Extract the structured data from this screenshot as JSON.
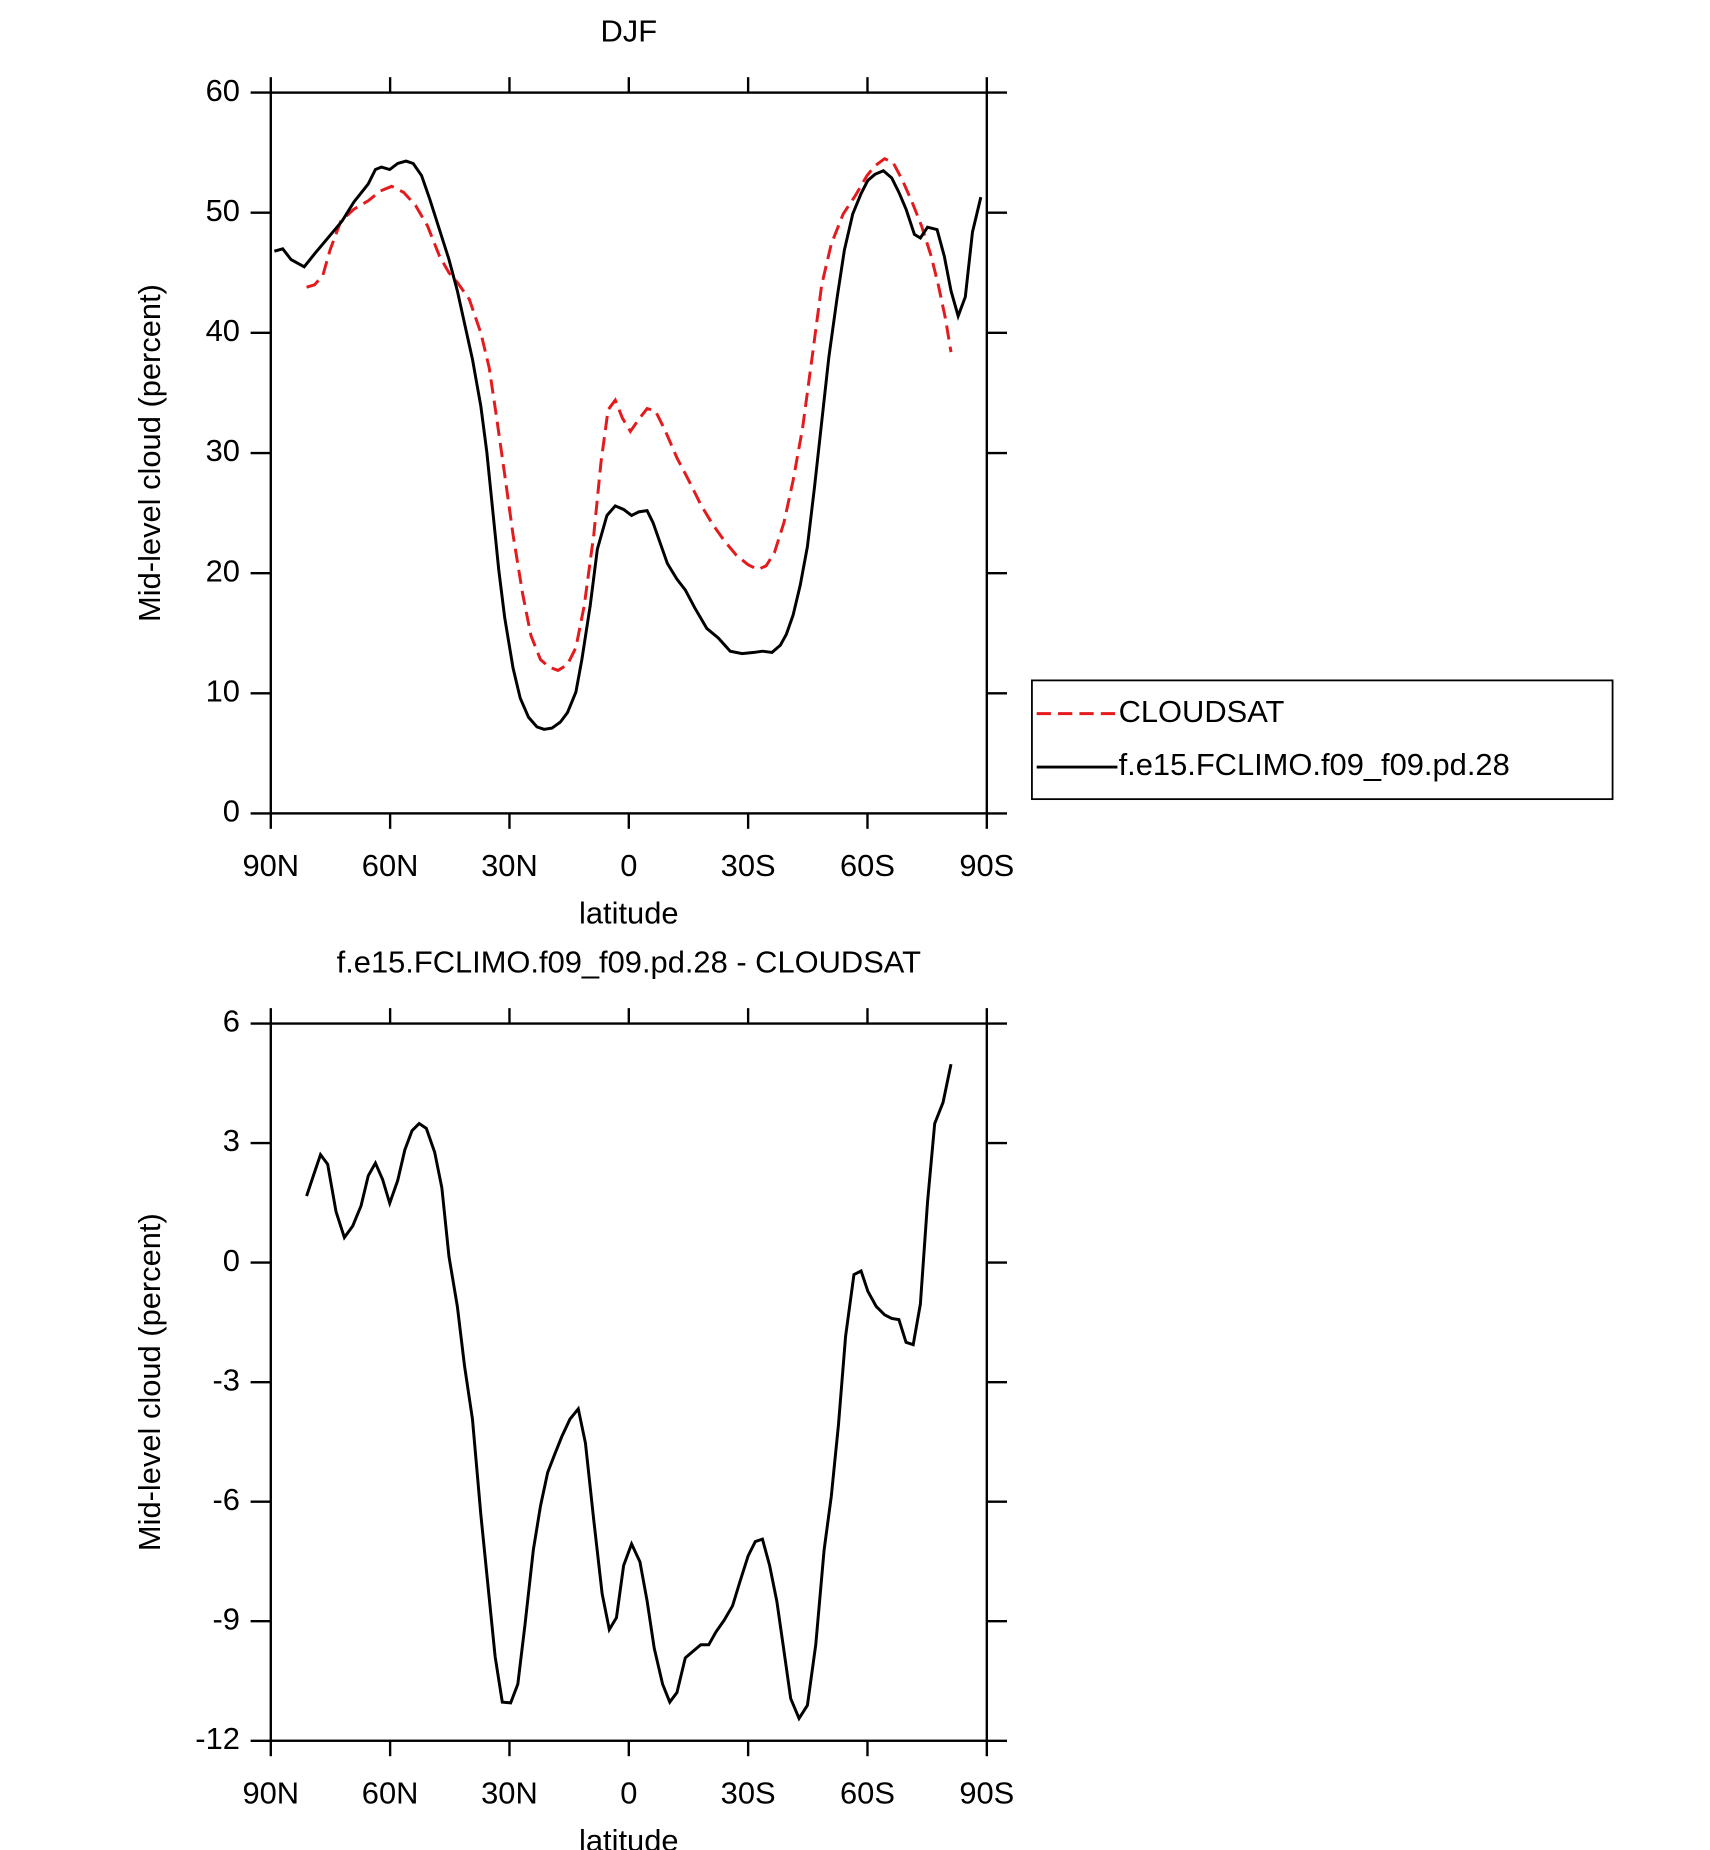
{
  "chart_data": [
    {
      "type": "line",
      "title": "DJF",
      "xlabel": "latitude",
      "ylabel": "Mid-level cloud (percent)",
      "xlim": [
        90,
        -90
      ],
      "xticks": [
        {
          "value": 90,
          "label": "90N"
        },
        {
          "value": 60,
          "label": "60N"
        },
        {
          "value": 30,
          "label": "30N"
        },
        0,
        {
          "value": -30,
          "label": "30S"
        },
        {
          "value": -60,
          "label": "60S"
        },
        {
          "value": -90,
          "label": "90S"
        }
      ],
      "ylim": [
        0,
        60
      ],
      "yticks": [
        0,
        10,
        20,
        30,
        40,
        50,
        60
      ],
      "legend": "right",
      "series": [
        {
          "name": "CLOUDSAT",
          "color": "#e41a1c",
          "line_style": "dashed",
          "x": [
            81.0,
            79.0,
            76.9,
            75.1,
            72.4,
            69.1,
            65.5,
            62.5,
            59.6,
            56.6,
            53.6,
            50.6,
            47.6,
            45.2,
            43.1,
            40.1,
            37.2,
            35.1,
            33.3,
            31.2,
            29.1,
            26.7,
            24.6,
            22.2,
            20.1,
            17.8,
            15.4,
            13.3,
            11.2,
            8.8,
            7.0,
            5.2,
            3.4,
            1.6,
            -0.4,
            -2.5,
            -4.6,
            -6.7,
            -9.1,
            -12.1,
            -15.1,
            -18.1,
            -21.0,
            -24.0,
            -27.0,
            -30.0,
            -32.4,
            -34.5,
            -36.6,
            -39.0,
            -41.3,
            -43.7,
            -46.1,
            -48.5,
            -50.9,
            -53.9,
            -56.9,
            -59.9,
            -61.9,
            -64.3,
            -66.4,
            -68.8,
            -71.2,
            -73.6,
            -76.0,
            -77.8,
            -79.6,
            -81.0
          ],
          "values": [
            43.8,
            44.0,
            44.8,
            46.9,
            49.3,
            50.3,
            51.0,
            51.8,
            52.2,
            51.7,
            50.6,
            48.9,
            46.4,
            45.0,
            44.2,
            42.8,
            40.0,
            37.1,
            33.1,
            28.2,
            23.2,
            18.3,
            14.8,
            12.8,
            12.2,
            11.9,
            12.4,
            13.8,
            17.3,
            23.2,
            29.2,
            33.6,
            34.4,
            32.9,
            31.8,
            32.8,
            33.7,
            33.5,
            31.9,
            29.6,
            27.7,
            25.7,
            24.1,
            22.7,
            21.5,
            20.7,
            20.3,
            20.6,
            21.7,
            24.2,
            27.7,
            32.1,
            38.0,
            44.0,
            47.4,
            49.9,
            51.4,
            53.1,
            53.9,
            54.5,
            54.2,
            52.7,
            50.9,
            48.9,
            46.4,
            44.0,
            41.2,
            38.4
          ]
        },
        {
          "name": "f.e15.FCLIMO.f09_f09.pd.28",
          "color": "#000000",
          "line_style": "solid",
          "x": [
            89.1,
            87.0,
            84.9,
            81.6,
            78.7,
            75.4,
            72.1,
            69.1,
            65.5,
            63.7,
            62.2,
            60.1,
            58.1,
            56.0,
            54.2,
            52.1,
            50.0,
            47.6,
            45.2,
            43.1,
            41.3,
            39.3,
            37.2,
            35.7,
            34.2,
            32.7,
            31.2,
            29.1,
            27.3,
            25.2,
            23.1,
            21.3,
            19.3,
            17.2,
            15.4,
            13.3,
            11.8,
            9.7,
            7.9,
            5.5,
            3.4,
            1.3,
            -0.7,
            -2.5,
            -4.6,
            -6.1,
            -7.9,
            -9.7,
            -12.1,
            -14.2,
            -16.6,
            -19.6,
            -22.5,
            -25.5,
            -28.5,
            -31.5,
            -33.6,
            -36.0,
            -38.1,
            -39.6,
            -41.3,
            -43.1,
            -44.9,
            -46.7,
            -48.5,
            -50.3,
            -52.4,
            -54.2,
            -56.3,
            -58.4,
            -60.1,
            -61.9,
            -64.0,
            -66.1,
            -67.9,
            -69.7,
            -71.8,
            -73.3,
            -75.1,
            -77.5,
            -79.3,
            -81.0,
            -82.8,
            -84.6,
            -86.4,
            -88.5
          ],
          "values": [
            46.8,
            47.0,
            46.1,
            45.5,
            46.7,
            48.0,
            49.3,
            50.9,
            52.4,
            53.6,
            53.8,
            53.6,
            54.1,
            54.3,
            54.1,
            53.1,
            51.1,
            48.6,
            46.1,
            43.5,
            40.8,
            37.8,
            33.9,
            30.1,
            25.2,
            20.3,
            16.3,
            12.1,
            9.6,
            8.0,
            7.2,
            7.0,
            7.1,
            7.6,
            8.4,
            10.1,
            12.8,
            17.3,
            22.0,
            24.8,
            25.6,
            25.3,
            24.8,
            25.1,
            25.2,
            24.2,
            22.5,
            20.8,
            19.5,
            18.6,
            17.1,
            15.4,
            14.6,
            13.5,
            13.3,
            13.4,
            13.5,
            13.4,
            14.0,
            14.9,
            16.5,
            19.0,
            22.2,
            27.2,
            32.6,
            38.0,
            43.0,
            46.9,
            49.9,
            51.6,
            52.7,
            53.2,
            53.5,
            52.9,
            51.7,
            50.3,
            48.2,
            47.9,
            48.8,
            48.6,
            46.4,
            43.5,
            41.4,
            43.0,
            48.4,
            51.3
          ]
        }
      ]
    },
    {
      "type": "line",
      "title": "f.e15.FCLIMO.f09_f09.pd.28 - CLOUDSAT",
      "xlabel": "latitude",
      "ylabel": "Mid-level cloud (percent)",
      "xlim": [
        90,
        -90
      ],
      "xticks": [
        {
          "value": 90,
          "label": "90N"
        },
        {
          "value": 60,
          "label": "60N"
        },
        {
          "value": 30,
          "label": "30N"
        },
        0,
        {
          "value": -30,
          "label": "30S"
        },
        {
          "value": -60,
          "label": "60S"
        },
        {
          "value": -90,
          "label": "90S"
        }
      ],
      "ylim": [
        -12,
        6
      ],
      "yticks": [
        -12,
        -9,
        -6,
        -3,
        0,
        3,
        6
      ],
      "series": [
        {
          "color": "#000000",
          "line_style": "solid",
          "x": [
            81.0,
            79.3,
            77.5,
            75.7,
            73.6,
            71.5,
            69.4,
            67.3,
            65.5,
            63.7,
            61.9,
            60.1,
            58.1,
            56.3,
            54.5,
            52.7,
            50.9,
            48.8,
            47.0,
            45.2,
            43.1,
            41.3,
            39.3,
            37.2,
            35.7,
            33.6,
            31.8,
            29.7,
            27.9,
            26.1,
            24.0,
            22.2,
            20.4,
            18.7,
            16.9,
            14.8,
            12.7,
            10.9,
            8.8,
            6.7,
            4.9,
            3.1,
            1.3,
            -0.7,
            -2.8,
            -4.6,
            -6.4,
            -8.5,
            -10.3,
            -12.1,
            -14.2,
            -16.3,
            -18.1,
            -20.1,
            -21.9,
            -24.0,
            -26.1,
            -27.9,
            -30.0,
            -31.8,
            -33.6,
            -35.4,
            -37.2,
            -39.0,
            -40.7,
            -42.8,
            -44.9,
            -47.0,
            -49.1,
            -50.9,
            -52.7,
            -54.5,
            -56.6,
            -58.4,
            -60.1,
            -62.2,
            -64.3,
            -66.1,
            -67.9,
            -69.7,
            -71.5,
            -73.3,
            -75.1,
            -76.9,
            -79.0,
            -81.0
          ],
          "values": [
            1.67,
            2.18,
            2.71,
            2.47,
            1.28,
            0.63,
            0.92,
            1.43,
            2.18,
            2.5,
            2.09,
            1.49,
            2.06,
            2.83,
            3.31,
            3.49,
            3.37,
            2.77,
            1.88,
            0.15,
            -1.1,
            -2.59,
            -3.93,
            -6.32,
            -7.81,
            -9.89,
            -11.03,
            -11.05,
            -10.58,
            -9.09,
            -7.21,
            -6.11,
            -5.27,
            -4.83,
            -4.38,
            -3.93,
            -3.67,
            -4.53,
            -6.47,
            -8.31,
            -9.21,
            -8.91,
            -7.6,
            -7.06,
            -7.51,
            -8.49,
            -9.68,
            -10.58,
            -11.03,
            -10.79,
            -9.92,
            -9.74,
            -9.59,
            -9.59,
            -9.27,
            -8.97,
            -8.61,
            -8.02,
            -7.36,
            -7.0,
            -6.94,
            -7.6,
            -8.49,
            -9.74,
            -10.94,
            -11.44,
            -11.11,
            -9.59,
            -7.21,
            -5.87,
            -4.08,
            -1.85,
            -0.3,
            -0.21,
            -0.72,
            -1.1,
            -1.31,
            -1.4,
            -1.43,
            -2.0,
            -2.06,
            -1.04,
            1.52,
            3.49,
            4.02,
            4.98
          ]
        }
      ]
    }
  ]
}
